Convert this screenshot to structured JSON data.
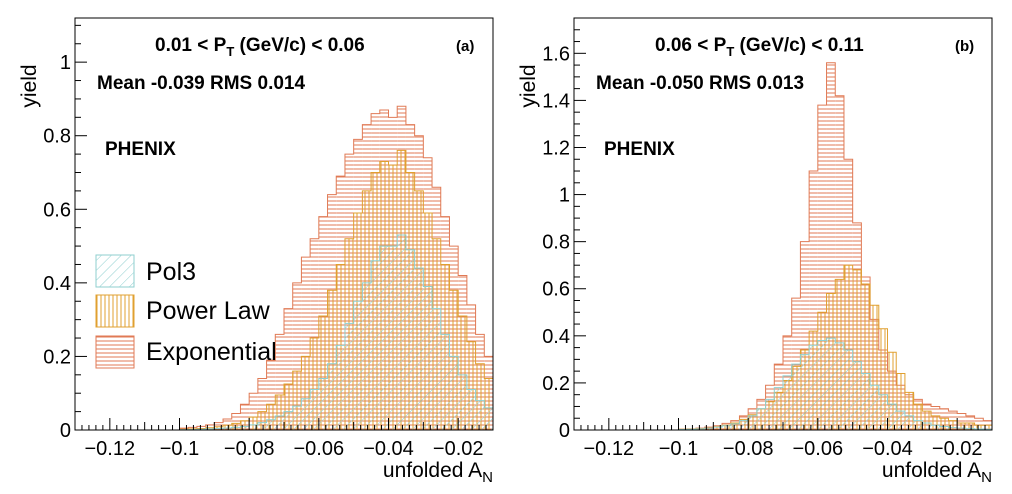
{
  "colors": {
    "pol3": "#8fcfcf",
    "power_law": "#e0a030",
    "exponential": "#e07a55",
    "axis": "#000000"
  },
  "legend": {
    "entries": [
      {
        "label": "Pol3",
        "key": "pol3"
      },
      {
        "label": "Power Law",
        "key": "power_law"
      },
      {
        "label": "Exponential",
        "key": "exponential"
      }
    ]
  },
  "chart_data": [
    {
      "type": "histogram",
      "panel": "(a)",
      "pt_range": {
        "prefix": "0.01 < P",
        "subscript": "T",
        "suffix": " (GeV/c)  <  0.06"
      },
      "stats": "Mean -0.039 RMS 0.014",
      "experiment": "PHENIX",
      "xlabel": {
        "main": "unfolded A",
        "subscript": "N"
      },
      "ylabel": "yield",
      "xlim": [
        -0.13,
        -0.01
      ],
      "ylim": [
        0,
        1.12
      ],
      "xticks": [
        -0.12,
        -0.1,
        -0.08,
        -0.06,
        -0.04,
        -0.02
      ],
      "xtick_labels": [
        "−0.12",
        "−0.1",
        "−0.08",
        "−0.06",
        "−0.04",
        "−0.02"
      ],
      "yticks": [
        0,
        0.2,
        0.4,
        0.6,
        0.8,
        1
      ],
      "ytick_labels": [
        "0",
        "0.2",
        "0.4",
        "0.6",
        "0.8",
        "1"
      ],
      "legend_position": "middle-left",
      "series": [
        {
          "name": "Exponential",
          "key": "exponential",
          "x_start": -0.1,
          "bin_width": 0.0025,
          "values": [
            0.005,
            0.007,
            0.01,
            0.014,
            0.02,
            0.03,
            0.045,
            0.07,
            0.1,
            0.14,
            0.19,
            0.26,
            0.33,
            0.4,
            0.47,
            0.52,
            0.58,
            0.64,
            0.69,
            0.75,
            0.79,
            0.83,
            0.86,
            0.87,
            0.85,
            0.88,
            0.83,
            0.8,
            0.74,
            0.66,
            0.58,
            0.5,
            0.42,
            0.34,
            0.26,
            0.2,
            0.15
          ]
        },
        {
          "name": "Power Law",
          "key": "power_law",
          "x_start": -0.1,
          "bin_width": 0.0025,
          "values": [
            0.002,
            0.003,
            0.004,
            0.006,
            0.009,
            0.013,
            0.018,
            0.025,
            0.035,
            0.05,
            0.07,
            0.095,
            0.125,
            0.16,
            0.2,
            0.25,
            0.31,
            0.38,
            0.45,
            0.52,
            0.59,
            0.65,
            0.7,
            0.73,
            0.72,
            0.76,
            0.7,
            0.65,
            0.59,
            0.52,
            0.45,
            0.38,
            0.31,
            0.24,
            0.18,
            0.14,
            0.1
          ]
        },
        {
          "name": "Pol3",
          "key": "pol3",
          "x_start": -0.1,
          "bin_width": 0.0025,
          "values": [
            0.001,
            0.001,
            0.002,
            0.003,
            0.004,
            0.005,
            0.007,
            0.01,
            0.014,
            0.02,
            0.028,
            0.038,
            0.05,
            0.065,
            0.085,
            0.11,
            0.14,
            0.18,
            0.23,
            0.29,
            0.35,
            0.4,
            0.46,
            0.5,
            0.5,
            0.53,
            0.49,
            0.44,
            0.39,
            0.33,
            0.26,
            0.2,
            0.15,
            0.11,
            0.08,
            0.06,
            0.045
          ]
        }
      ]
    },
    {
      "type": "histogram",
      "panel": "(b)",
      "pt_range": {
        "prefix": "0.06 < P",
        "subscript": "T",
        "suffix": " (GeV/c)  <  0.11"
      },
      "stats": "Mean -0.050 RMS 0.013",
      "experiment": "PHENIX",
      "xlabel": {
        "main": "unfolded A",
        "subscript": "N"
      },
      "ylabel": "yield",
      "xlim": [
        -0.13,
        -0.01
      ],
      "ylim": [
        0,
        1.75
      ],
      "xticks": [
        -0.12,
        -0.1,
        -0.08,
        -0.06,
        -0.04,
        -0.02
      ],
      "xtick_labels": [
        "−0.12",
        "−0.1",
        "−0.08",
        "−0.06",
        "−0.04",
        "−0.02"
      ],
      "yticks": [
        0,
        0.2,
        0.4,
        0.6,
        0.8,
        1,
        1.2,
        1.4,
        1.6
      ],
      "ytick_labels": [
        "0",
        "0.2",
        "0.4",
        "0.6",
        "0.8",
        "1",
        "1.2",
        "1.4",
        "1.6"
      ],
      "series": [
        {
          "name": "Exponential",
          "key": "exponential",
          "x_start": -0.1,
          "bin_width": 0.0025,
          "values": [
            0.003,
            0.005,
            0.008,
            0.012,
            0.018,
            0.028,
            0.04,
            0.06,
            0.09,
            0.13,
            0.19,
            0.28,
            0.4,
            0.56,
            0.8,
            1.1,
            1.38,
            1.56,
            1.42,
            1.15,
            0.88,
            0.65,
            0.47,
            0.34,
            0.25,
            0.19,
            0.15,
            0.13,
            0.11,
            0.1,
            0.09,
            0.08,
            0.07,
            0.06,
            0.05,
            0.04,
            0.04
          ]
        },
        {
          "name": "Power Law",
          "key": "power_law",
          "x_start": -0.1,
          "bin_width": 0.0025,
          "values": [
            0.003,
            0.004,
            0.006,
            0.009,
            0.014,
            0.02,
            0.03,
            0.045,
            0.065,
            0.09,
            0.12,
            0.16,
            0.21,
            0.27,
            0.34,
            0.42,
            0.5,
            0.58,
            0.64,
            0.7,
            0.68,
            0.62,
            0.53,
            0.43,
            0.33,
            0.24,
            0.16,
            0.11,
            0.08,
            0.06,
            0.05,
            0.04,
            0.03,
            0.03,
            0.02,
            0.02,
            0.02
          ]
        },
        {
          "name": "Pol3",
          "key": "pol3",
          "x_start": -0.1,
          "bin_width": 0.0025,
          "values": [
            0.002,
            0.003,
            0.005,
            0.008,
            0.012,
            0.018,
            0.026,
            0.04,
            0.06,
            0.09,
            0.13,
            0.18,
            0.23,
            0.28,
            0.32,
            0.36,
            0.38,
            0.39,
            0.37,
            0.34,
            0.29,
            0.24,
            0.19,
            0.15,
            0.11,
            0.08,
            0.06,
            0.04,
            0.03,
            0.02,
            0.015,
            0.01,
            0.008,
            0.006,
            0.004,
            0.003,
            0.002
          ]
        }
      ]
    }
  ]
}
